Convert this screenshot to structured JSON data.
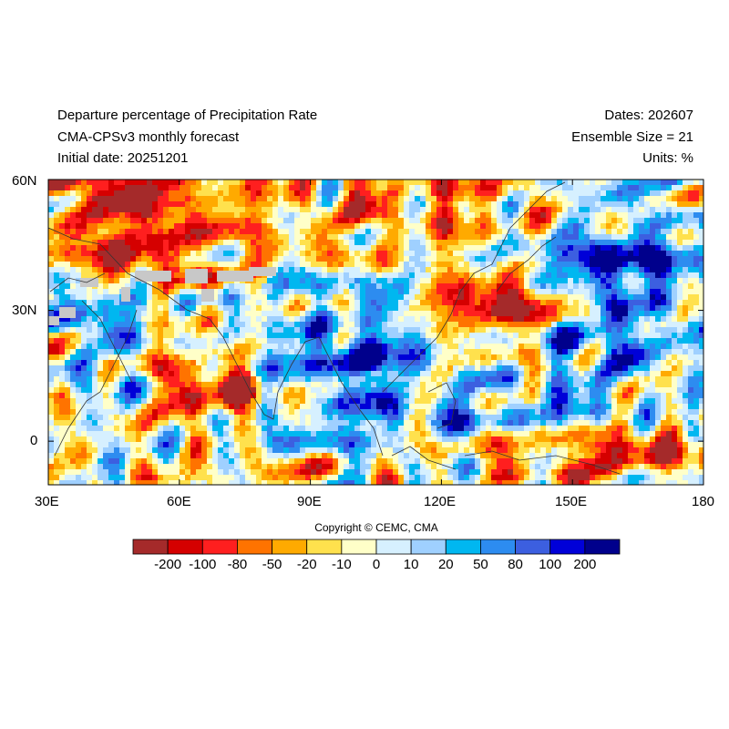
{
  "header": {
    "title": "Departure percentage of Precipitation Rate",
    "subtitle": "CMA-CPSv3 monthly forecast",
    "initial_date": "Initial date: 20251201",
    "dates": "Dates: 202607",
    "ensemble": "Ensemble Size = 21",
    "units": "Units: %"
  },
  "axes": {
    "lon_ticks": [
      "30E",
      "60E",
      "90E",
      "120E",
      "150E",
      "180"
    ],
    "lat_ticks": [
      "60N",
      "30N",
      "0"
    ],
    "lon_range": [
      30,
      180
    ],
    "lat_range": [
      -10,
      60
    ]
  },
  "copyright": "Copyright © CEMC, CMA",
  "colorbar": {
    "colors": [
      "#a52a2a",
      "#d50000",
      "#ff1f1f",
      "#ff7300",
      "#ffaa00",
      "#ffe14d",
      "#ffffc8",
      "#d6f0ff",
      "#9fd0ff",
      "#00b7f0",
      "#2d8cf0",
      "#3c5fe0",
      "#0000d8",
      "#00008c"
    ],
    "labels": [
      "-200",
      "-100",
      "-80",
      "-50",
      "-20",
      "-10",
      "0",
      "10",
      "20",
      "50",
      "80",
      "100",
      "200"
    ]
  },
  "map_data": {
    "type": "heatmap",
    "missing_color": "#c8c8c8",
    "coast_color": "#333333"
  }
}
